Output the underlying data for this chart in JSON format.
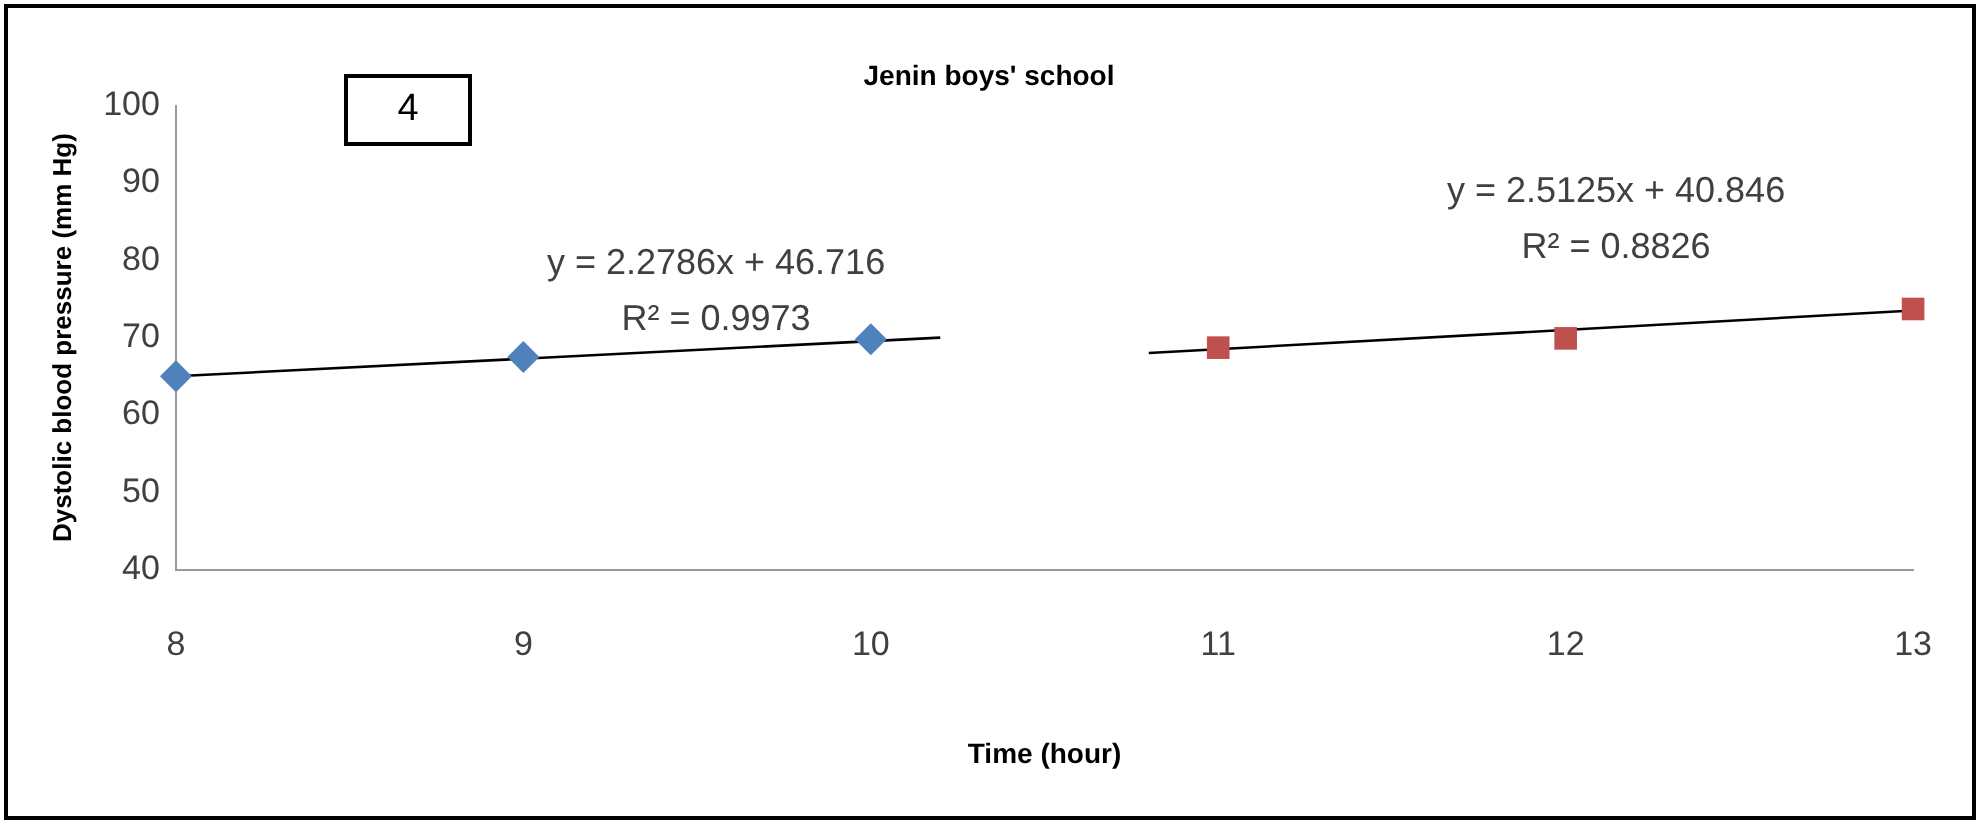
{
  "chart_data": {
    "type": "scatter",
    "title": "Jenin boys' school",
    "xlabel": "Time (hour)",
    "ylabel": "Dystolic blood pressure (mm Hg)",
    "series": [
      {
        "type": "scatter",
        "color": "#4f81bd",
        "marker": "diamond",
        "x": [
          8,
          9,
          10
        ],
        "values": [
          65,
          67.5,
          69.8
        ]
      },
      {
        "type": "scatter",
        "color": "#c0504d",
        "marker": "square",
        "x": [
          11,
          12,
          13
        ],
        "values": [
          68.7,
          69.9,
          73.7
        ]
      },
      {
        "type": "line",
        "color": "#000000",
        "marker": "none",
        "x": [
          8,
          10.2
        ],
        "values": [
          65,
          70
        ]
      },
      {
        "type": "line",
        "color": "#000000",
        "marker": "none",
        "x": [
          10.8,
          13
        ],
        "values": [
          68,
          73.5
        ]
      }
    ],
    "xlim": [
      8,
      13
    ],
    "xticks": [
      8,
      9,
      10,
      11,
      12,
      13
    ],
    "ylim": [
      40,
      100
    ],
    "yticks": [
      40,
      50,
      60,
      70,
      80,
      90,
      100
    ],
    "grid": false,
    "legend": false,
    "annotations": [
      "4",
      "y = 2.2786x + 46.716",
      "R² = 0.9973",
      "y = 2.5125x + 40.846",
      "R² = 0.8826"
    ]
  }
}
